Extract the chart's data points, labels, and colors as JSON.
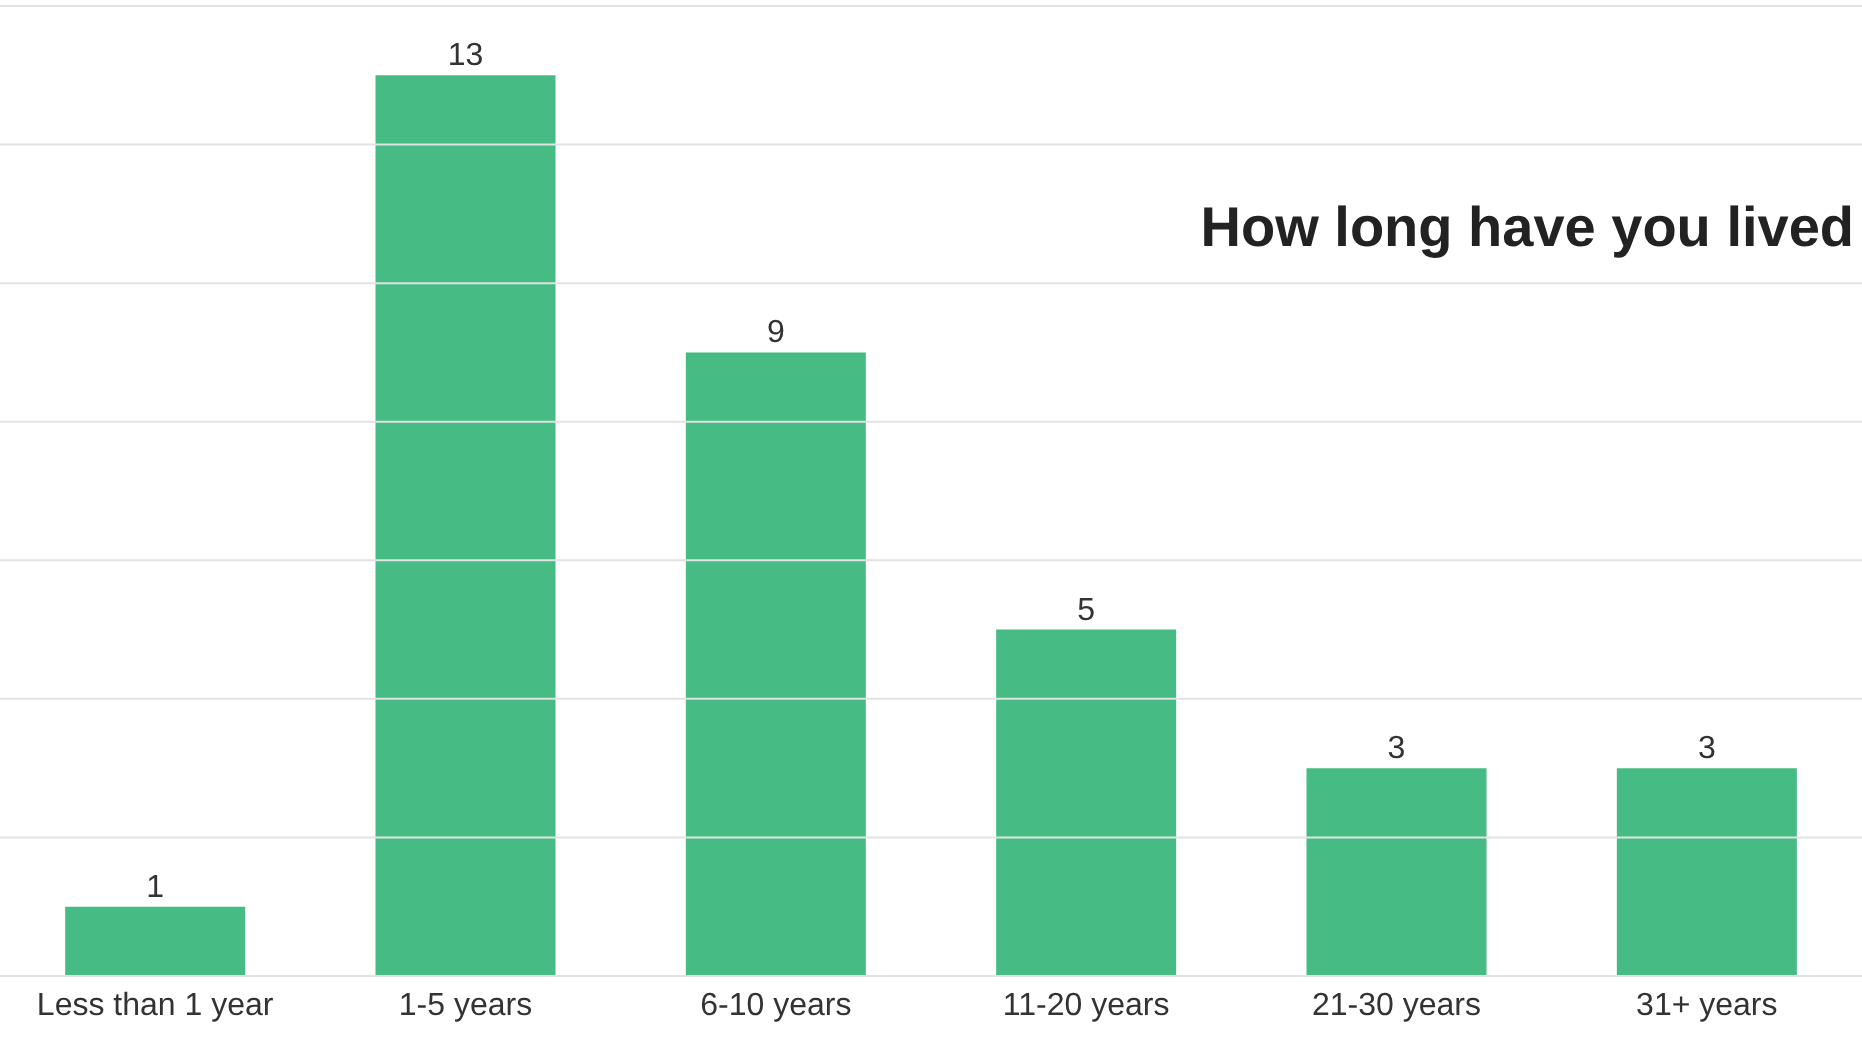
{
  "chart_data": {
    "type": "bar",
    "title": "How long have you lived",
    "categories": [
      "Less than 1 year",
      "1-5 years",
      "6-10 years",
      "11-20 years",
      "21-30 years",
      "31+ years"
    ],
    "values": [
      1,
      13,
      9,
      5,
      3,
      3
    ],
    "color": "#46bb84",
    "ylim": [
      0,
      14
    ],
    "yticks": [
      0,
      2,
      4,
      6,
      8,
      10,
      12,
      14
    ],
    "grid": "y",
    "tick_labels": "x",
    "data_labels": true
  }
}
